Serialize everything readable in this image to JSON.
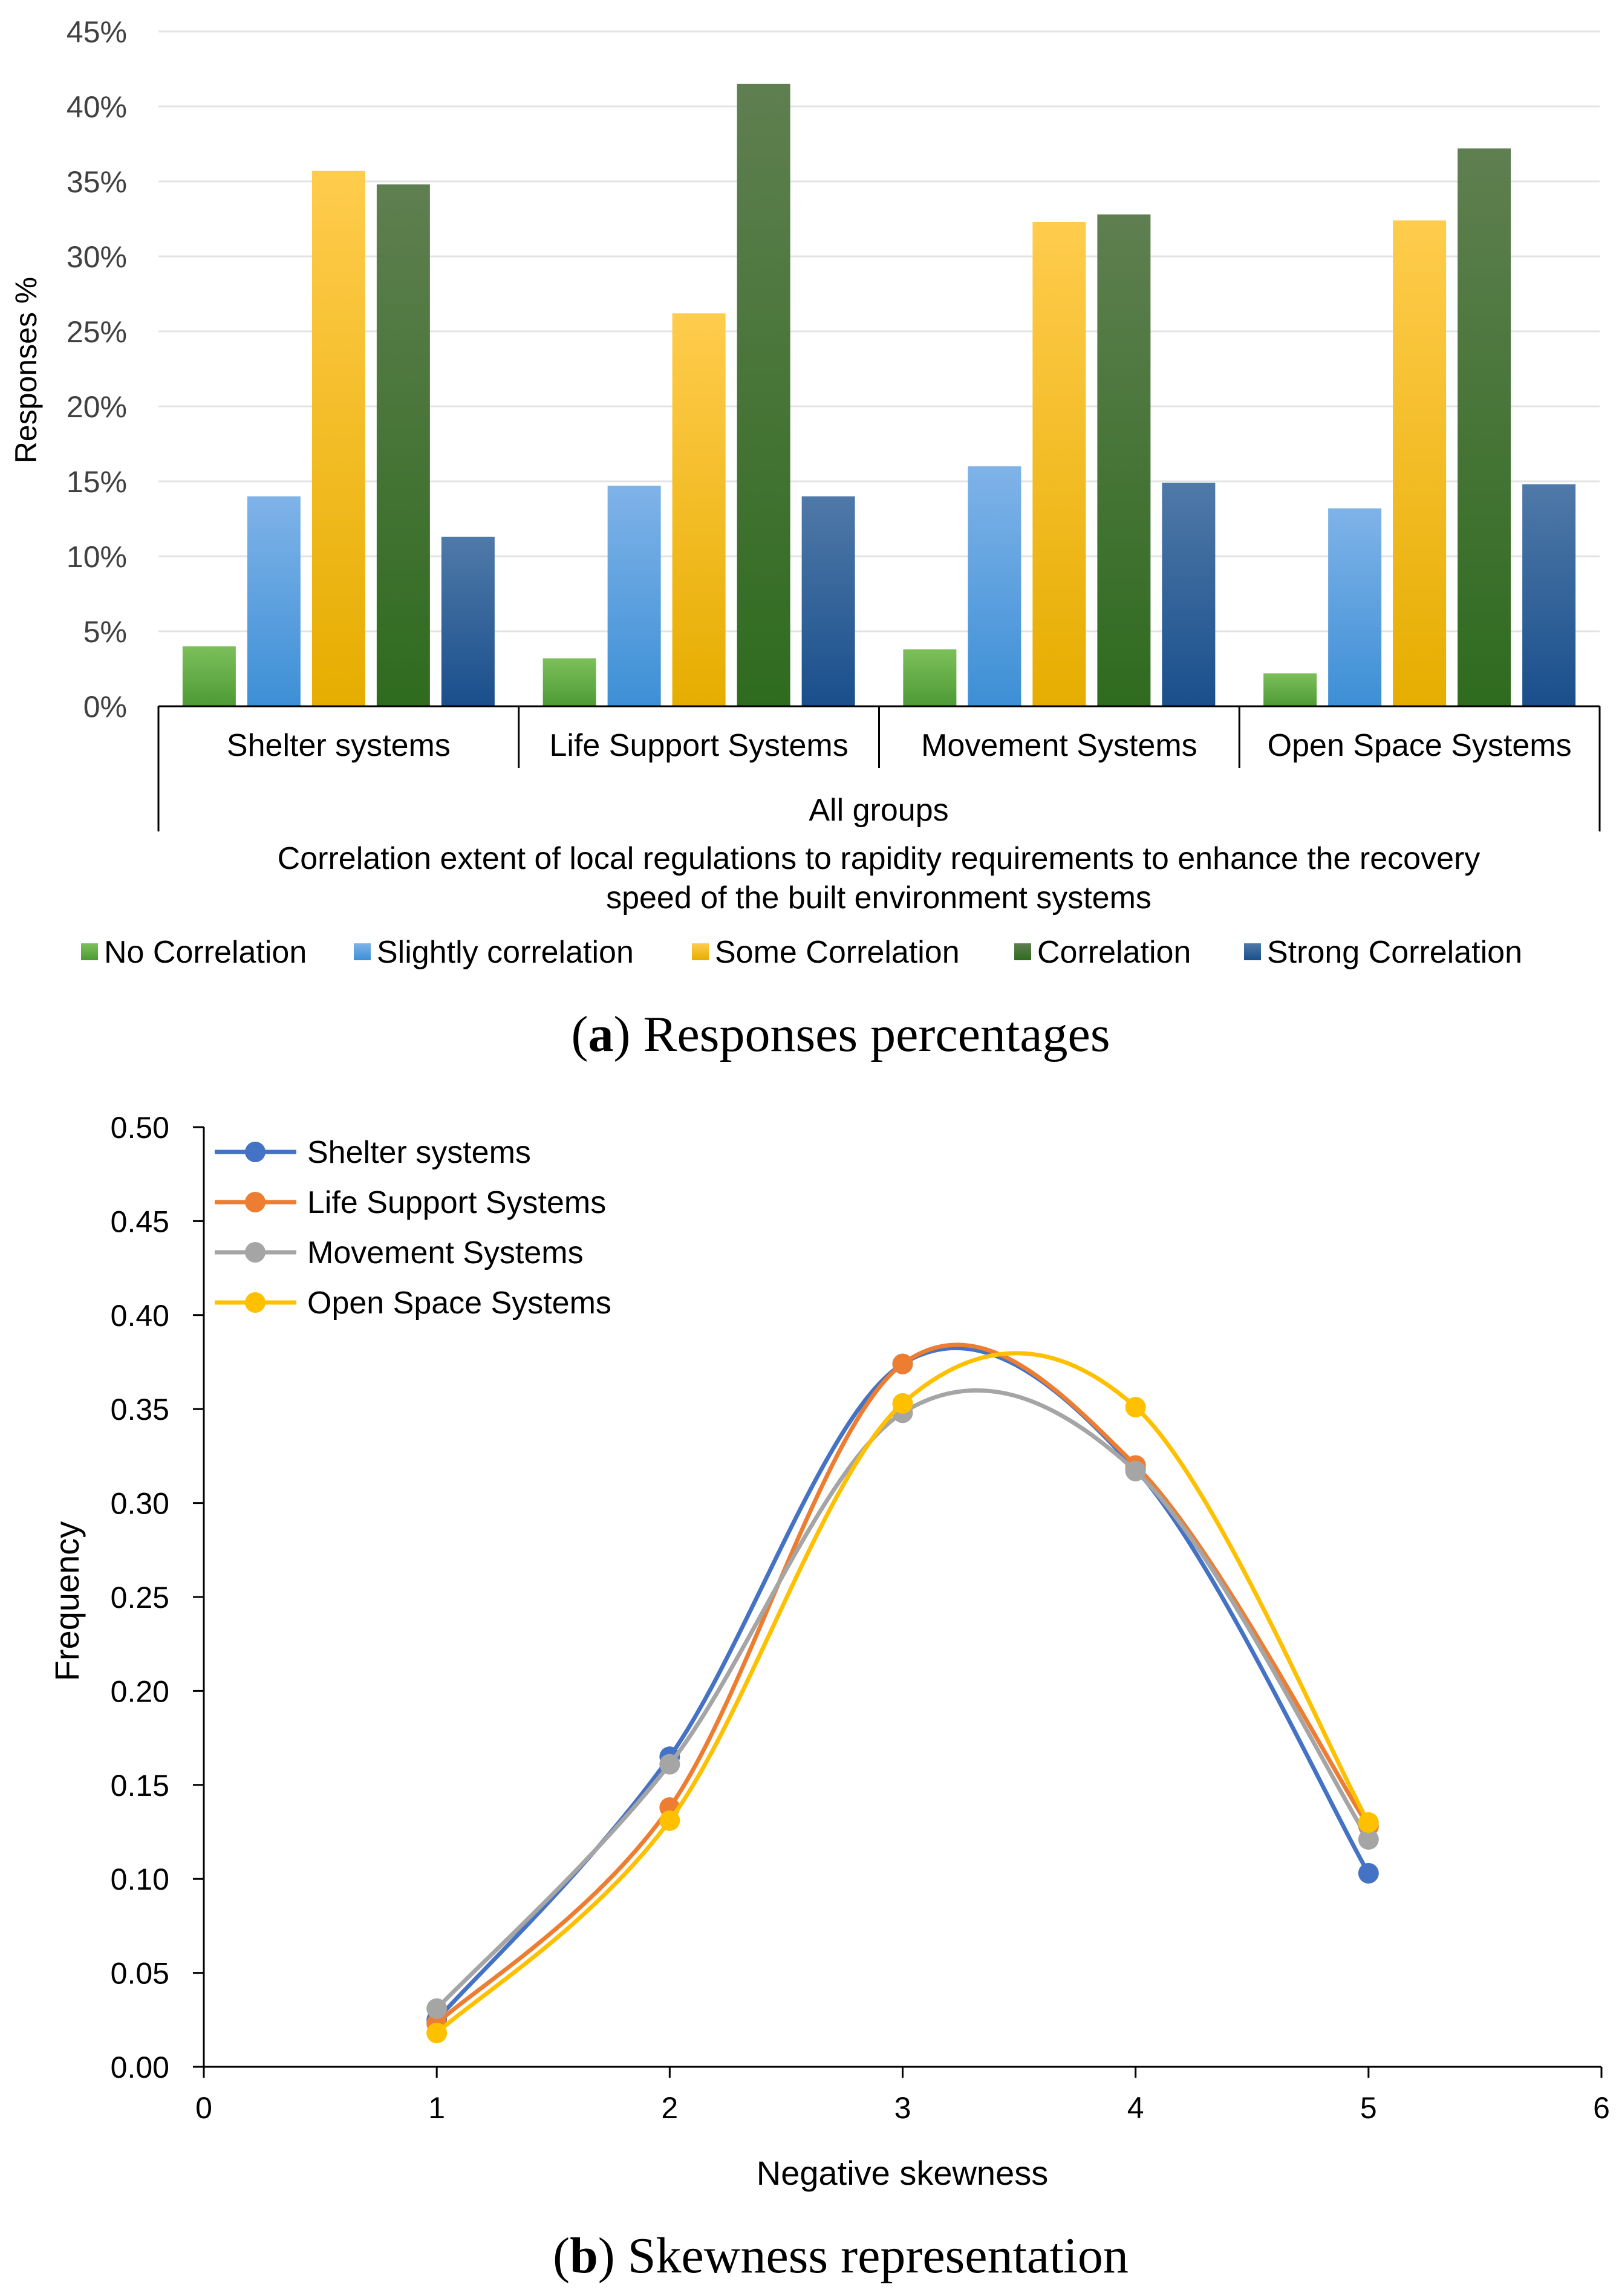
{
  "chart_data": [
    {
      "type": "bar",
      "panel_caption_letter": "a",
      "panel_caption_text": " Responses percentages",
      "ylabel": "Responses %",
      "ylim": [
        0,
        45
      ],
      "ytick_values": [
        0,
        5,
        10,
        15,
        20,
        25,
        30,
        35,
        40,
        45
      ],
      "ytick_labels": [
        "0%",
        "5%",
        "10%",
        "15%",
        "20%",
        "25%",
        "30%",
        "35%",
        "40%",
        "45%"
      ],
      "categories": [
        "Shelter systems",
        "Life Support Systems",
        "Movement Systems",
        "Open Space Systems"
      ],
      "group_label": "All groups",
      "xlabel_line1": "Correlation extent of local regulations to rapidity requirements to enhance the recovery",
      "xlabel_line2": "speed of the built environment systems",
      "grid": true,
      "legend_position": "bottom",
      "series": [
        {
          "name": "No Correlation",
          "values": [
            4.0,
            3.2,
            3.8,
            2.2
          ],
          "color_top": "#7cc05a",
          "color_bottom": "#4e9a36"
        },
        {
          "name": "Slightly correlation",
          "values": [
            14.0,
            14.7,
            16.0,
            13.2
          ],
          "color_top": "#7fb3e8",
          "color_bottom": "#3d8fd6"
        },
        {
          "name": "Some Correlation",
          "values": [
            35.7,
            26.2,
            32.3,
            32.4
          ],
          "color_top": "#ffcc4d",
          "color_bottom": "#e6ad00"
        },
        {
          "name": "Correlation",
          "values": [
            34.8,
            41.5,
            32.8,
            37.2
          ],
          "color_top": "#5f7f50",
          "color_bottom": "#2f6b1f"
        },
        {
          "name": "Strong Correlation",
          "values": [
            11.3,
            14.0,
            14.9,
            14.8
          ],
          "color_top": "#4f79a8",
          "color_bottom": "#1a4f8c"
        }
      ]
    },
    {
      "type": "line",
      "panel_caption_letter": "b",
      "panel_caption_text": " Skewness representation",
      "xlabel": "Negative skewness",
      "ylabel": "Frequency",
      "xlim": [
        0,
        6
      ],
      "ylim": [
        0,
        0.5
      ],
      "xtick_values": [
        0,
        1,
        2,
        3,
        4,
        5,
        6
      ],
      "xtick_labels": [
        "0",
        "1",
        "2",
        "3",
        "4",
        "5",
        "6"
      ],
      "ytick_values": [
        0,
        0.05,
        0.1,
        0.15,
        0.2,
        0.25,
        0.3,
        0.35,
        0.4,
        0.45,
        0.5
      ],
      "ytick_labels": [
        "0.00",
        "0.05",
        "0.10",
        "0.15",
        "0.20",
        "0.25",
        "0.30",
        "0.35",
        "0.40",
        "0.45",
        "0.50"
      ],
      "grid": false,
      "smooth": true,
      "legend_position": "top-left",
      "x": [
        1,
        2,
        3,
        4,
        5
      ],
      "series": [
        {
          "name": "Shelter systems",
          "values": [
            0.025,
            0.165,
            0.374,
            0.318,
            0.103
          ],
          "color": "#4472c4"
        },
        {
          "name": "Life Support Systems",
          "values": [
            0.023,
            0.138,
            0.374,
            0.32,
            0.128
          ],
          "color": "#ed7d31"
        },
        {
          "name": "Movement Systems",
          "values": [
            0.031,
            0.161,
            0.348,
            0.317,
            0.121
          ],
          "color": "#a5a5a5"
        },
        {
          "name": "Open Space Systems",
          "values": [
            0.018,
            0.131,
            0.353,
            0.351,
            0.13
          ],
          "color": "#ffc000"
        }
      ]
    }
  ]
}
